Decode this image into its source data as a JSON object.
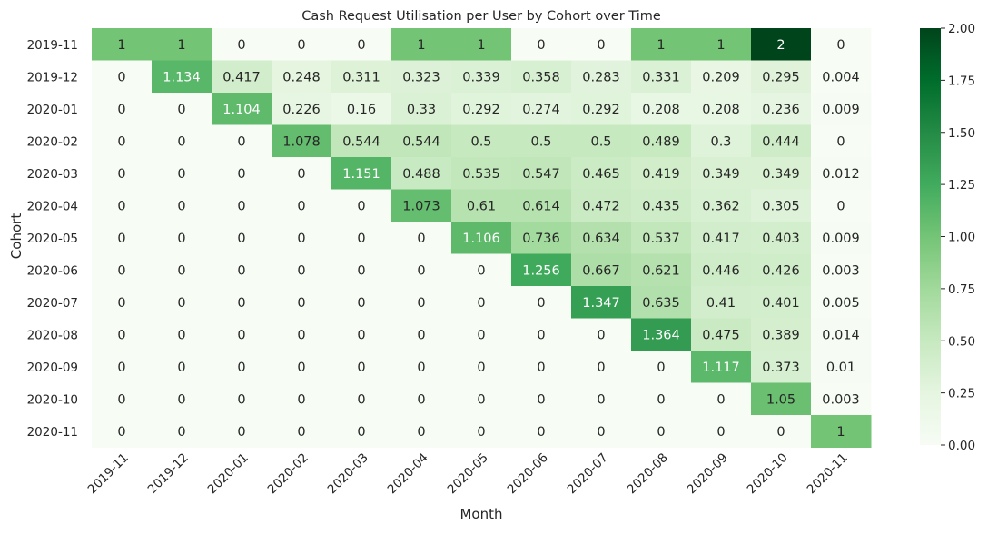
{
  "chart_data": {
    "type": "heatmap",
    "title": "Cash Request Utilisation per User by Cohort over Time",
    "xlabel": "Month",
    "ylabel": "Cohort",
    "x_categories": [
      "2019-11",
      "2019-12",
      "2020-01",
      "2020-02",
      "2020-03",
      "2020-04",
      "2020-05",
      "2020-06",
      "2020-07",
      "2020-08",
      "2020-09",
      "2020-10",
      "2020-11"
    ],
    "y_categories": [
      "2019-11",
      "2019-12",
      "2020-01",
      "2020-02",
      "2020-03",
      "2020-04",
      "2020-05",
      "2020-06",
      "2020-07",
      "2020-08",
      "2020-09",
      "2020-10",
      "2020-11"
    ],
    "values": [
      [
        1,
        1,
        0,
        0,
        0,
        1,
        1,
        0,
        0,
        1,
        1,
        2,
        0
      ],
      [
        0,
        1.134,
        0.417,
        0.248,
        0.311,
        0.323,
        0.339,
        0.358,
        0.283,
        0.331,
        0.209,
        0.295,
        0.004
      ],
      [
        0,
        0,
        1.104,
        0.226,
        0.16,
        0.33,
        0.292,
        0.274,
        0.292,
        0.208,
        0.208,
        0.236,
        0.009
      ],
      [
        0,
        0,
        0,
        1.078,
        0.544,
        0.544,
        0.5,
        0.5,
        0.5,
        0.489,
        0.3,
        0.444,
        0
      ],
      [
        0,
        0,
        0,
        0,
        1.151,
        0.488,
        0.535,
        0.547,
        0.465,
        0.419,
        0.349,
        0.349,
        0.012
      ],
      [
        0,
        0,
        0,
        0,
        0,
        1.073,
        0.61,
        0.614,
        0.472,
        0.435,
        0.362,
        0.305,
        0
      ],
      [
        0,
        0,
        0,
        0,
        0,
        0,
        1.106,
        0.736,
        0.634,
        0.537,
        0.417,
        0.403,
        0.009
      ],
      [
        0,
        0,
        0,
        0,
        0,
        0,
        0,
        1.256,
        0.667,
        0.621,
        0.446,
        0.426,
        0.003
      ],
      [
        0,
        0,
        0,
        0,
        0,
        0,
        0,
        0,
        1.347,
        0.635,
        0.41,
        0.401,
        0.005
      ],
      [
        0,
        0,
        0,
        0,
        0,
        0,
        0,
        0,
        0,
        1.364,
        0.475,
        0.389,
        0.014
      ],
      [
        0,
        0,
        0,
        0,
        0,
        0,
        0,
        0,
        0,
        0,
        1.117,
        0.373,
        0.01
      ],
      [
        0,
        0,
        0,
        0,
        0,
        0,
        0,
        0,
        0,
        0,
        0,
        1.05,
        0.003
      ],
      [
        0,
        0,
        0,
        0,
        0,
        0,
        0,
        0,
        0,
        0,
        0,
        0,
        1
      ]
    ],
    "value_range": [
      0,
      2
    ],
    "colormap": "Greens",
    "colorbar_ticks": [
      "0.00",
      "0.25",
      "0.50",
      "0.75",
      "1.00",
      "1.25",
      "1.50",
      "1.75",
      "2.00"
    ],
    "colors": {
      "low": "#f7fcf5",
      "high": "#00441b",
      "text_dark": "#262626",
      "text_light": "#ffffff"
    },
    "grid": false,
    "legend": "right"
  }
}
